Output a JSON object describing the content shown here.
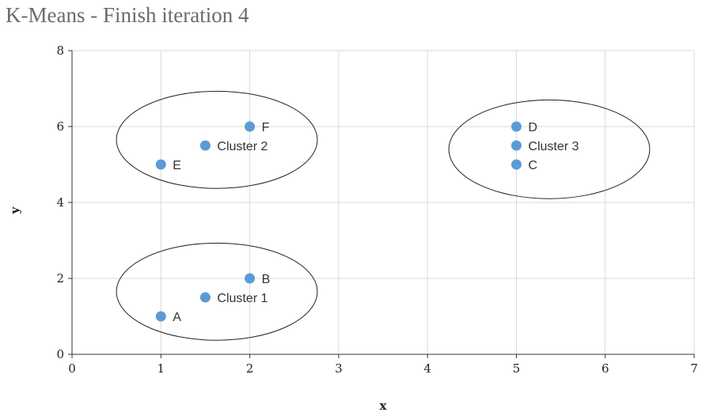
{
  "chart_data": {
    "type": "scatter",
    "title": "K-Means - Finish iteration 4",
    "xlabel": "x",
    "ylabel": "y",
    "xlim": [
      0,
      7
    ],
    "ylim": [
      0,
      8
    ],
    "xticks": [
      0,
      1,
      2,
      3,
      4,
      5,
      6,
      7
    ],
    "yticks": [
      0,
      2,
      4,
      6,
      8
    ],
    "grid": true,
    "point_color": "#5b9bd5",
    "points": [
      {
        "label": "A",
        "x": 1,
        "y": 1
      },
      {
        "label": "B",
        "x": 2,
        "y": 2
      },
      {
        "label": "Cluster 1",
        "x": 1.5,
        "y": 1.5
      },
      {
        "label": "E",
        "x": 1,
        "y": 5
      },
      {
        "label": "F",
        "x": 2,
        "y": 6
      },
      {
        "label": "Cluster 2",
        "x": 1.5,
        "y": 5.5
      },
      {
        "label": "C",
        "x": 5,
        "y": 5
      },
      {
        "label": "D",
        "x": 5,
        "y": 6
      },
      {
        "label": "Cluster 3",
        "x": 5,
        "y": 5.5
      }
    ],
    "ellipses": [
      {
        "cx": 1.63,
        "cy": 1.65,
        "rx": 1.13,
        "ry": 1.28
      },
      {
        "cx": 1.63,
        "cy": 5.65,
        "rx": 1.13,
        "ry": 1.28
      },
      {
        "cx": 5.37,
        "cy": 5.4,
        "rx": 1.13,
        "ry": 1.3
      }
    ]
  }
}
